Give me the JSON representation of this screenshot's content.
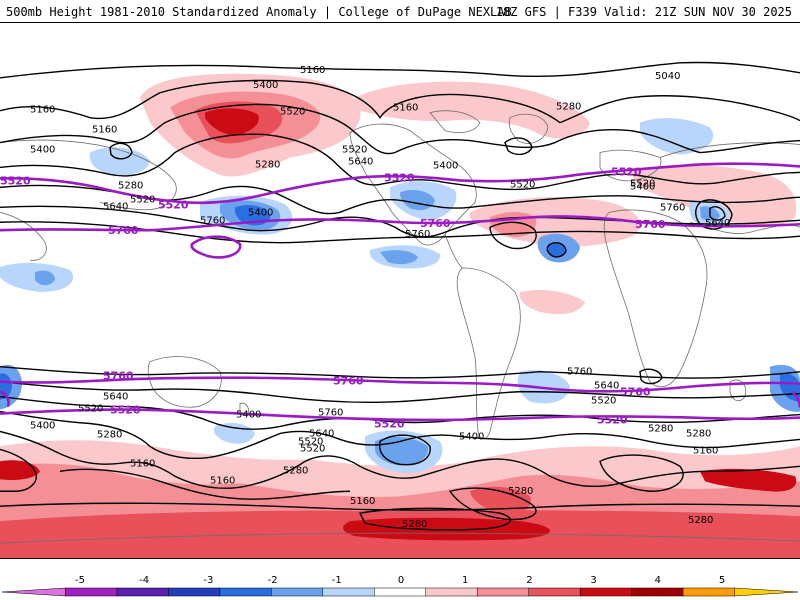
{
  "header": {
    "left_title": "500mb Height 1981-2010 Standardized Anomaly | College of DuPage NEXLAB",
    "right_title": "18Z GFS | F339 Valid: 21Z SUN NOV 30 2025"
  },
  "contour_labels": {
    "black": [
      "5160",
      "5040",
      "5400",
      "5520",
      "5160",
      "5280",
      "5160",
      "5400",
      "5160",
      "5280",
      "5520",
      "5640",
      "5400",
      "5520",
      "5280",
      "5520",
      "5640",
      "5400",
      "5760",
      "5760",
      "5520",
      "5400",
      "5760",
      "5640",
      "5400",
      "5280",
      "5640",
      "5520",
      "5520",
      "5400",
      "5280",
      "5640",
      "5520",
      "5280",
      "5160",
      "5760",
      "5160",
      "5160",
      "5280",
      "5280",
      "5760",
      "5640",
      "5520",
      "5400",
      "5280",
      "5160",
      "5280"
    ],
    "purple": [
      "5520",
      "5520",
      "5520",
      "5520",
      "5760",
      "5760",
      "5760",
      "5760",
      "5760",
      "5760",
      "5520",
      "5520",
      "5520",
      "5760",
      "5520"
    ]
  },
  "colorbar": {
    "ticks": [
      "-5",
      "-4",
      "-3",
      "-2",
      "-1",
      "0",
      "1",
      "2",
      "3",
      "4",
      "5"
    ],
    "colors": [
      "#d873e0",
      "#a020c0",
      "#5a1fb0",
      "#1f3fbf",
      "#2a6fe0",
      "#6aa2ee",
      "#b8d6fb",
      "#ffffff",
      "#fbc8cc",
      "#f48f96",
      "#e8505a",
      "#cc0a14",
      "#a00000",
      "#ff9a00",
      "#ffd000"
    ]
  },
  "colors": {
    "contour": "#000000",
    "contour_5520_5760": "#9a1bc4",
    "land_outline": "#6e6e6e"
  }
}
